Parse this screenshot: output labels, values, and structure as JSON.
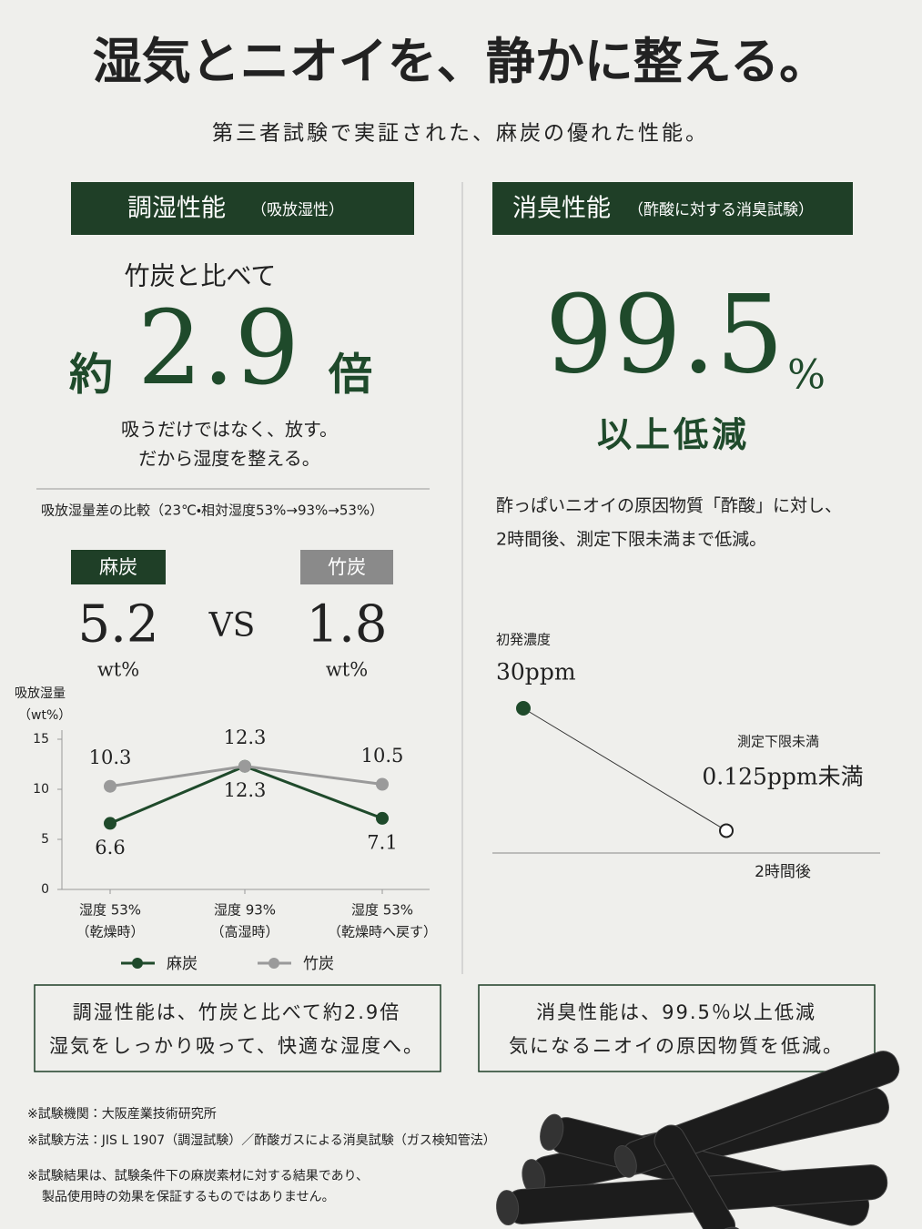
{
  "header": {
    "title": "湿気とニオイを、静かに整える。",
    "subtitle": "第三者試験で実証された、麻炭の優れた性能。"
  },
  "humidity": {
    "badge": "調湿性能",
    "badge_note": "（吸放湿性）",
    "lead": "竹炭と比べて",
    "prefix": "約",
    "ratio": "2.9",
    "suffix": "倍",
    "copy": [
      "吸うだけではなく、放す。",
      "だから湿度を整える。"
    ],
    "comparison_title": "吸放湿量差の比較（23℃・相対湿度53%→93%→53%）",
    "compare": [
      {
        "name": "麻炭",
        "value": "5.2",
        "unit": "wt%"
      },
      {
        "name": "竹炭",
        "value": "1.8",
        "unit": "wt%"
      }
    ],
    "vs": "VS",
    "summary": [
      "調湿性能は、竹炭と比べて約2.9倍",
      "湿気をしっかり吸って、快適な湿度へ。"
    ]
  },
  "deodorant": {
    "badge": "消臭性能",
    "badge_note": "（酢酸に対する消臭試験）",
    "rate": "99.5",
    "unit": "%",
    "caption": "以上低減",
    "copy": [
      "酢っぱいニオイの原因物質「酢酸」に対し、",
      "2時間後、測定下限未満まで低減。"
    ],
    "summary": [
      "消臭性能は、99.5％以上低減",
      "気になるニオイの原因物質を低減。"
    ]
  },
  "notes": [
    "※試験機関：大阪産業技術研究所",
    "※試験方法：JIS L 1907（調湿試験）／酢酸ガスによる消臭試験（ガス検知管法）",
    "※試験結果は、試験条件下の麻炭素材に対する結果であり、",
    "製品使用時の効果を保証するものではありません。"
  ],
  "chart_data": [
    {
      "type": "line",
      "y_title": [
        "吸放湿量",
        "（wt%）"
      ],
      "categories": [
        "湿度 53%",
        "湿度 93%",
        "湿度 53%"
      ],
      "category_sublabels": [
        "（乾燥時）",
        "（高湿時）",
        "（乾燥時へ戻す）"
      ],
      "series": [
        {
          "name": "麻炭",
          "color": "#1f4a2b",
          "values": [
            6.6,
            12.3,
            7.1
          ]
        },
        {
          "name": "竹炭",
          "color": "#9a9a9a",
          "values": [
            10.3,
            12.3,
            10.5
          ]
        }
      ],
      "ylim": [
        0,
        15
      ],
      "yticks": [
        0,
        5,
        10,
        15
      ]
    },
    {
      "type": "line",
      "categories": [
        null,
        "2時間後"
      ],
      "point_titles": [
        "初発濃度",
        "測定下限未満"
      ],
      "values": [
        30,
        0.125
      ],
      "value_labels": [
        "30ppm",
        "0.125ppm未満"
      ],
      "color": "#1f4a2b",
      "ylim": [
        0,
        30
      ]
    }
  ]
}
